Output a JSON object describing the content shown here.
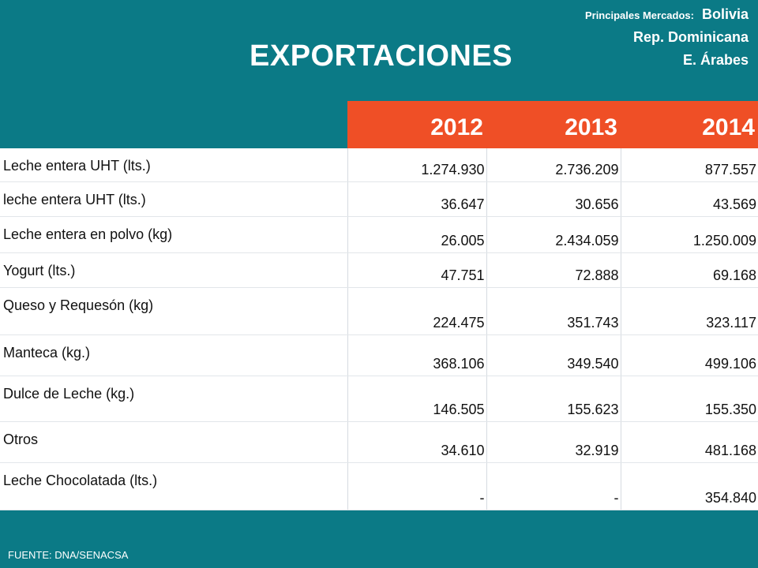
{
  "title": "EXPORTACIONES",
  "markets": {
    "label": "Principales Mercados:",
    "items": [
      "Bolivia",
      "Rep. Dominicana",
      "E. Árabes"
    ]
  },
  "table": {
    "years": [
      "2012",
      "2013",
      "2014"
    ],
    "rows": [
      {
        "label": "Leche entera UHT (lts.)",
        "values": [
          "1.274.930",
          "2.736.209",
          "877.557"
        ]
      },
      {
        "label": "leche entera UHT (lts.)",
        "values": [
          "36.647",
          "30.656",
          "43.569"
        ]
      },
      {
        "label": "Leche entera en polvo (kg)",
        "values": [
          "26.005",
          "2.434.059",
          "1.250.009"
        ]
      },
      {
        "label": "Yogurt (lts.)",
        "values": [
          "47.751",
          "72.888",
          "69.168"
        ]
      },
      {
        "label": "Queso y Requesón (kg)",
        "values": [
          "224.475",
          "351.743",
          "323.117"
        ]
      },
      {
        "label": "Manteca (kg.)",
        "values": [
          "368.106",
          "349.540",
          "499.106"
        ]
      },
      {
        "label": "Dulce de Leche (kg.)",
        "values": [
          "146.505",
          "155.623",
          "155.350"
        ]
      },
      {
        "label": "Otros",
        "values": [
          "34.610",
          "32.919",
          "481.168"
        ]
      },
      {
        "label": "Leche Chocolatada (lts.)",
        "values": [
          "-",
          "-",
          "354.840"
        ]
      }
    ]
  },
  "footer": "FUENTE: DNA/SENACSA",
  "colors": {
    "background": "#0b7a86",
    "header_accent": "#ef4f26",
    "table_body": "#ffffff"
  }
}
